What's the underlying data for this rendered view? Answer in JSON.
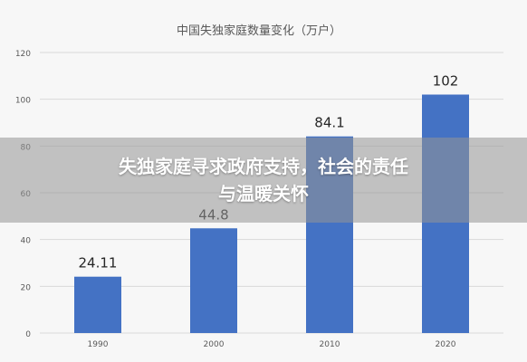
{
  "banner": {
    "line1": "失独家庭寻求政府支持，社会的责任",
    "line2": "与温暖关怀"
  },
  "colors": {
    "bar": "#4472c4",
    "grid": "#d9d9d9",
    "axis_text": "#595959",
    "label_text": "#262626",
    "title_text": "#595959",
    "banner_bg": "#969696"
  },
  "chart_data": {
    "type": "bar",
    "title": "中国失独家庭数量变化（万户）",
    "categories": [
      "1990",
      "2000",
      "2010",
      "2020"
    ],
    "values": [
      24.11,
      44.8,
      84.1,
      102
    ],
    "value_labels": [
      "24.11",
      "44.8",
      "84.1",
      "102"
    ],
    "ylim": [
      0,
      120
    ],
    "yticks": [
      "0",
      "20",
      "40",
      "60",
      "80",
      "100",
      "120"
    ],
    "xlabel": "",
    "ylabel": "",
    "grid": true,
    "legend": "none"
  }
}
